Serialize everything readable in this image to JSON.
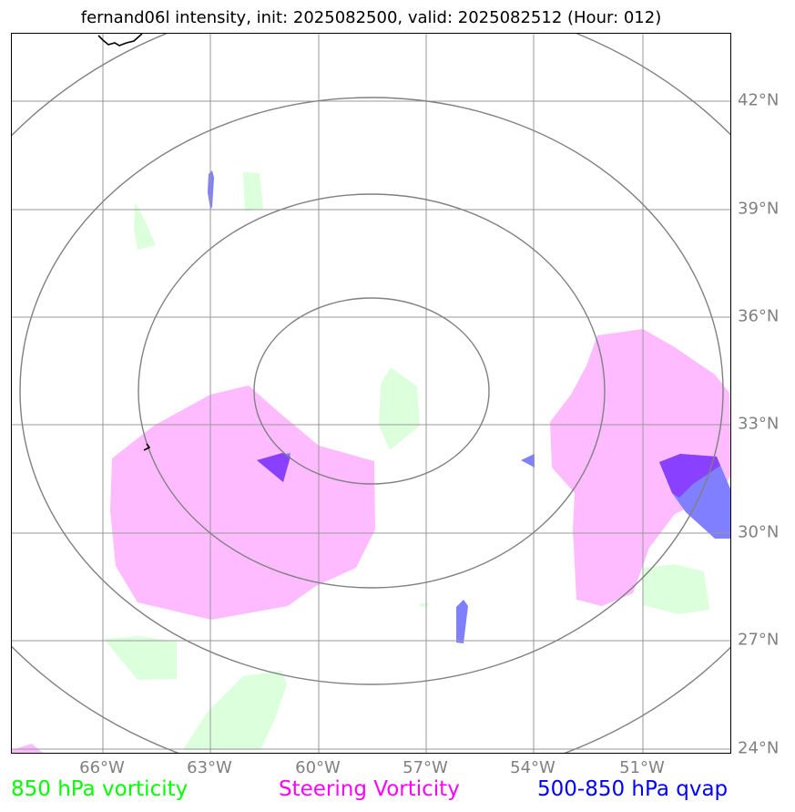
{
  "title": "fernand06l intensity, init: 2025082500, valid: 2025082512 (Hour: 012)",
  "latitude_labels": [
    "42°N",
    "39°N",
    "36°N",
    "33°N",
    "30°N",
    "27°N",
    "24°N"
  ],
  "longitude_labels": [
    "66°W",
    "63°W",
    "60°W",
    "57°W",
    "54°W",
    "51°W"
  ],
  "legend": [
    {
      "label": "850 hPa vorticity",
      "color": "#00ff00"
    },
    {
      "label": "Steering Vorticity",
      "color": "#ff00ff"
    },
    {
      "label": "500-850 hPa qvap",
      "color": "#0000ff"
    }
  ],
  "colors": {
    "vorticity_850": "#dcffdc",
    "steering_vorticity": "#ffbbff",
    "qvap": "#7f7fff",
    "overlap": "#8a40ff",
    "range_rings": "#808080",
    "gridlines": "#999999",
    "coastline": "#000000"
  }
}
